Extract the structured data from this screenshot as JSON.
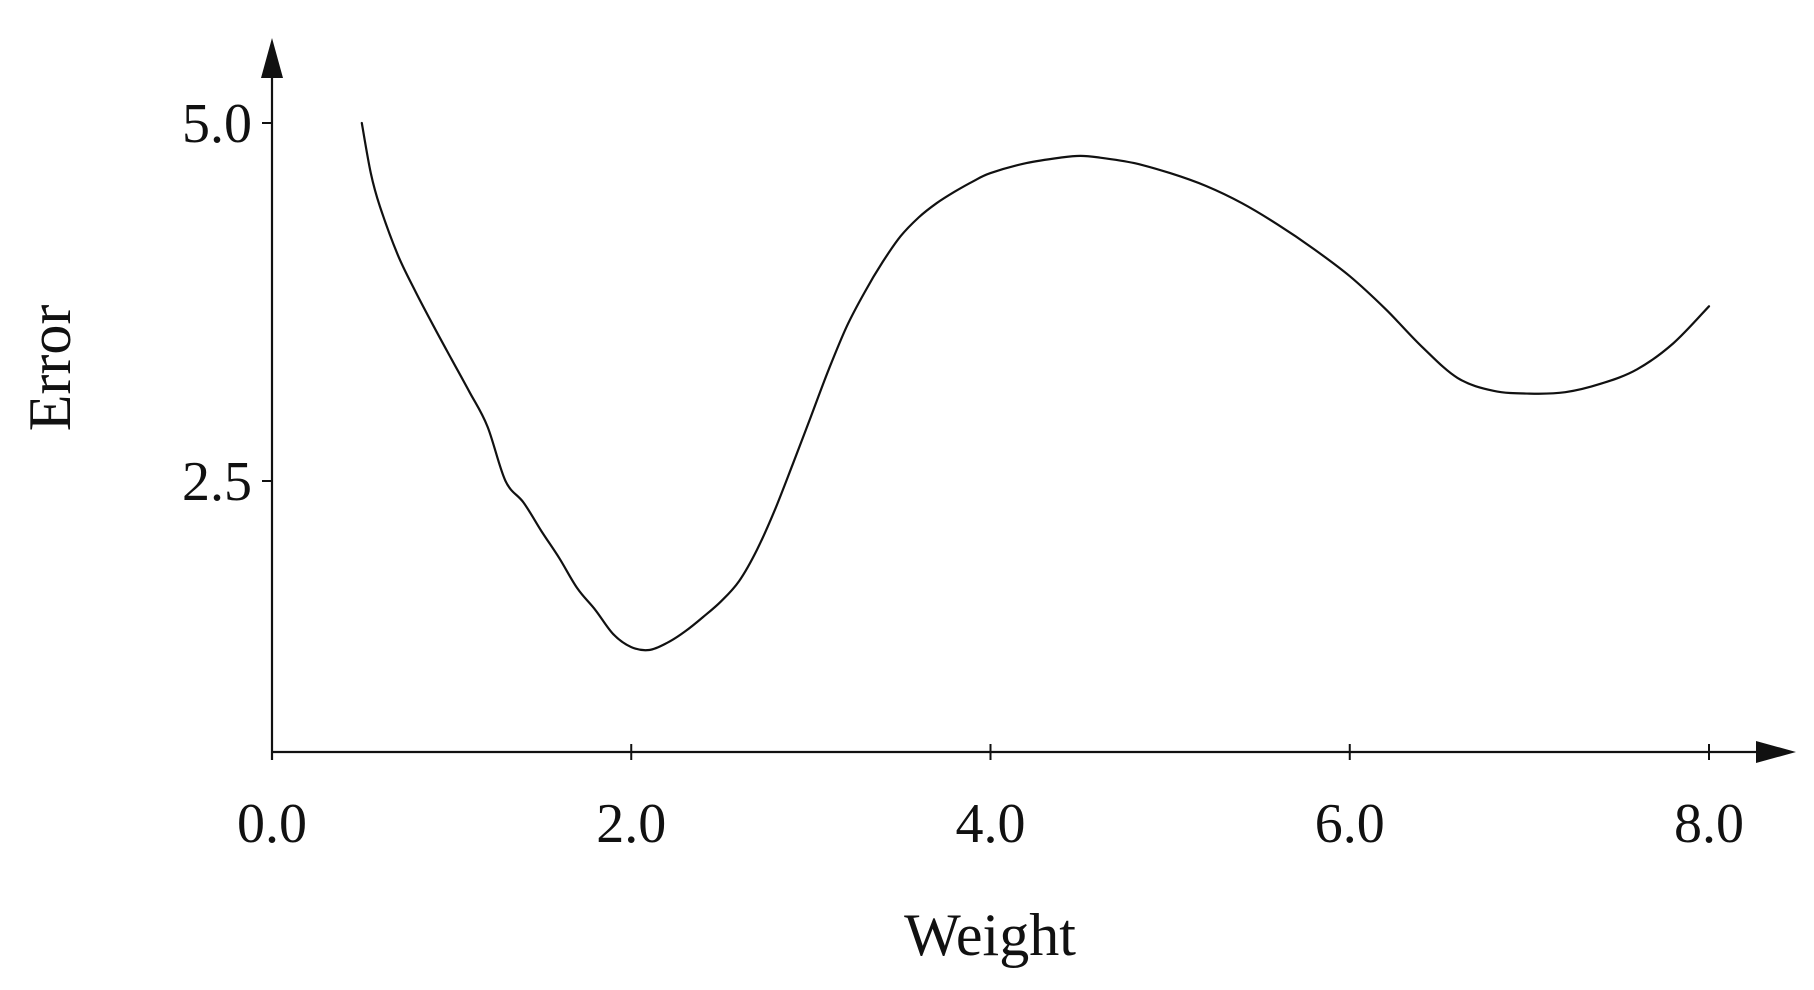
{
  "chart_data": {
    "type": "line",
    "xlabel": "Weight",
    "ylabel": "Error",
    "xlim": [
      0.0,
      8.0
    ],
    "ylim": [
      0.3,
      5.7
    ],
    "x_ticks": [
      0.0,
      2.0,
      4.0,
      6.0,
      8.0
    ],
    "x_tick_labels": [
      "0.0",
      "2.0",
      "4.0",
      "6.0",
      "8.0"
    ],
    "y_ticks": [
      2.5,
      5.0
    ],
    "y_tick_labels": [
      "2.5",
      "5.0"
    ],
    "grid": false,
    "series": [
      {
        "color": "#111111",
        "points": [
          [
            0.5,
            5.0
          ],
          [
            0.55,
            4.65
          ],
          [
            0.6,
            4.42
          ],
          [
            0.7,
            4.08
          ],
          [
            0.8,
            3.82
          ],
          [
            0.9,
            3.58
          ],
          [
            1.0,
            3.35
          ],
          [
            1.1,
            3.12
          ],
          [
            1.2,
            2.88
          ],
          [
            1.3,
            2.5
          ],
          [
            1.4,
            2.35
          ],
          [
            1.5,
            2.15
          ],
          [
            1.6,
            1.96
          ],
          [
            1.7,
            1.75
          ],
          [
            1.8,
            1.6
          ],
          [
            1.9,
            1.43
          ],
          [
            2.0,
            1.34
          ],
          [
            2.1,
            1.32
          ],
          [
            2.2,
            1.37
          ],
          [
            2.3,
            1.45
          ],
          [
            2.4,
            1.55
          ],
          [
            2.5,
            1.66
          ],
          [
            2.6,
            1.8
          ],
          [
            2.7,
            2.02
          ],
          [
            2.8,
            2.3
          ],
          [
            2.9,
            2.62
          ],
          [
            3.0,
            2.95
          ],
          [
            3.1,
            3.28
          ],
          [
            3.2,
            3.58
          ],
          [
            3.3,
            3.82
          ],
          [
            3.4,
            4.03
          ],
          [
            3.5,
            4.21
          ],
          [
            3.6,
            4.34
          ],
          [
            3.7,
            4.44
          ],
          [
            3.8,
            4.52
          ],
          [
            3.9,
            4.59
          ],
          [
            4.0,
            4.65
          ],
          [
            4.2,
            4.72
          ],
          [
            4.4,
            4.76
          ],
          [
            4.5,
            4.77
          ],
          [
            4.6,
            4.76
          ],
          [
            4.8,
            4.72
          ],
          [
            5.0,
            4.65
          ],
          [
            5.2,
            4.56
          ],
          [
            5.4,
            4.44
          ],
          [
            5.6,
            4.29
          ],
          [
            5.8,
            4.12
          ],
          [
            6.0,
            3.93
          ],
          [
            6.2,
            3.7
          ],
          [
            6.4,
            3.44
          ],
          [
            6.6,
            3.22
          ],
          [
            6.8,
            3.13
          ],
          [
            7.0,
            3.11
          ],
          [
            7.2,
            3.12
          ],
          [
            7.4,
            3.18
          ],
          [
            7.6,
            3.28
          ],
          [
            7.8,
            3.46
          ],
          [
            8.0,
            3.72
          ]
        ]
      }
    ]
  }
}
